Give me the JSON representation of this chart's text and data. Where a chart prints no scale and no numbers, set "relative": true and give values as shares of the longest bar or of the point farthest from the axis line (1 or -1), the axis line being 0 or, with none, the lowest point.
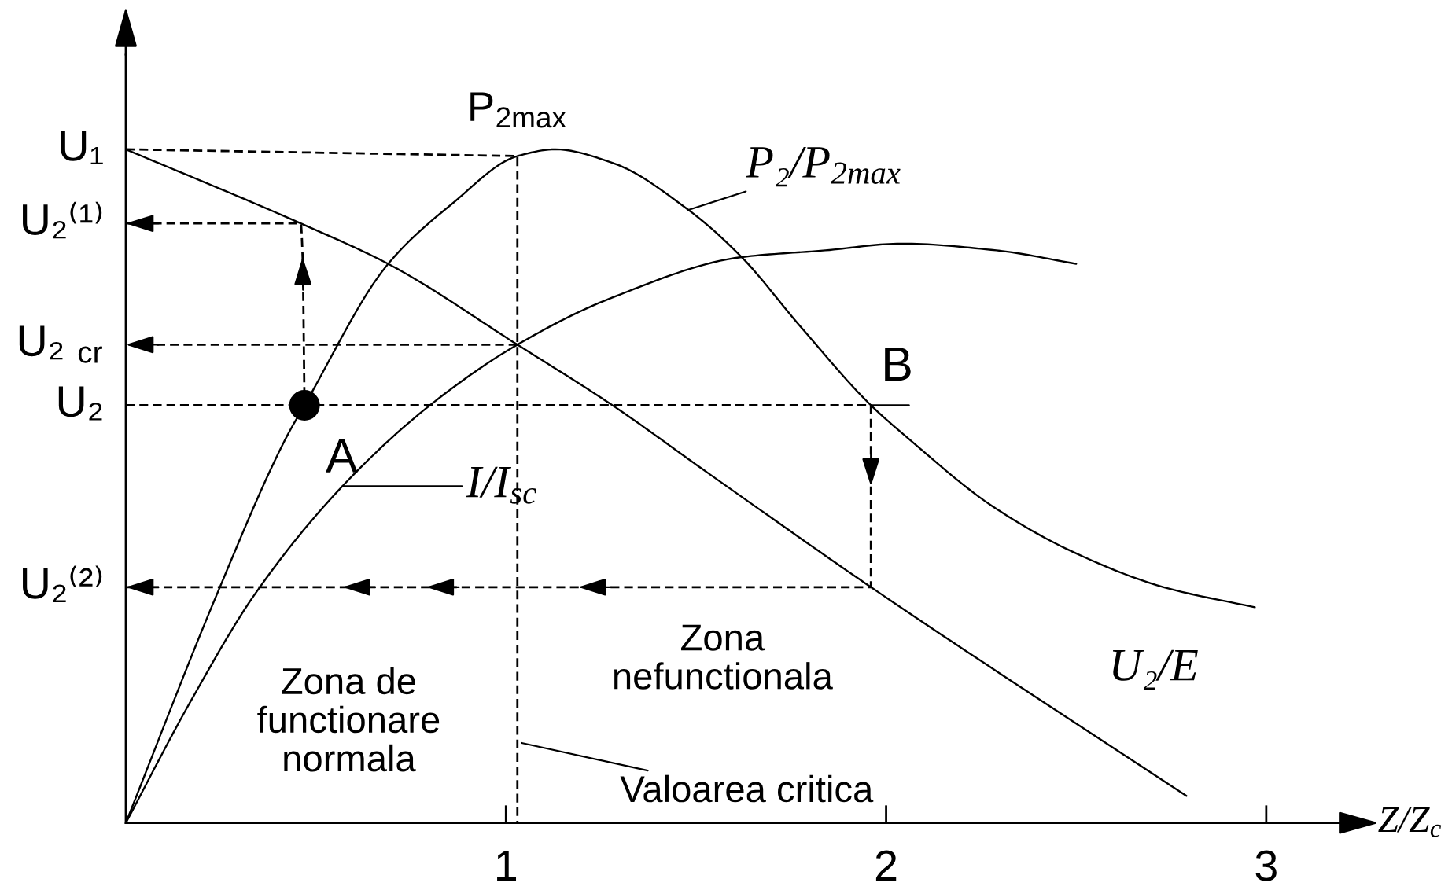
{
  "chart_data": {
    "type": "line",
    "relative": true,
    "xlabel": "Z/Z$_{c}$",
    "xlim": [
      0,
      3.17
    ],
    "xticks": [
      1,
      2,
      3
    ],
    "series": [
      {
        "name": "P₂/P$_{2max}$",
        "color": "#000000",
        "x": [
          0,
          0.24,
          0.42,
          0.47,
          0.69,
          0.86,
          1.03,
          1.13,
          1.28,
          1.48,
          1.62,
          1.77,
          1.96,
          2.06,
          2.28,
          2.5,
          2.73,
          2.97
        ],
        "values": [
          0,
          0.34,
          0.57,
          0.62,
          0.83,
          0.92,
          0.99,
          1.0,
          0.98,
          0.91,
          0.84,
          0.74,
          0.62,
          0.57,
          0.47,
          0.4,
          0.35,
          0.32
        ]
      },
      {
        "name": "I/I$_{sc}$",
        "color": "#000000",
        "x": [
          0,
          0.17,
          0.34,
          0.57,
          0.8,
          1.03,
          1.28,
          1.62,
          1.84,
          2.04,
          2.29,
          2.5
        ],
        "values": [
          0,
          0.18,
          0.34,
          0.5,
          0.62,
          0.71,
          0.78,
          0.84,
          0.85,
          0.86,
          0.85,
          0.83
        ]
      },
      {
        "name": "U₂/E",
        "color": "#000000",
        "x": [
          0,
          0.46,
          0.69,
          1.03,
          1.28,
          1.53,
          1.96,
          2.79
        ],
        "values": [
          1.0,
          0.89,
          0.83,
          0.71,
          0.62,
          0.52,
          0.35,
          0.04
        ]
      },
      {
        "color": "#000000",
        "line_style": "dashed",
        "x": [
          0,
          1.03,
          1.03
        ],
        "values": [
          1.0,
          0.99,
          0
        ]
      },
      {
        "color": "#000000",
        "line_style": "dashed",
        "x": [
          0.47,
          0.465,
          0.46,
          0
        ],
        "values": [
          0.62,
          0.84,
          0.89,
          0.89
        ]
      },
      {
        "color": "#000000",
        "line_style": "dashed",
        "x": [
          1.03,
          0
        ],
        "values": [
          0.71,
          0.71
        ]
      },
      {
        "color": "#000000",
        "line_style": "dashed",
        "x": [
          0,
          1.96,
          1.96,
          1.96,
          1.19,
          0.79,
          0.57,
          0
        ],
        "values": [
          0.62,
          0.62,
          0.5,
          0.35,
          0.35,
          0.35,
          0.35,
          0.35
        ]
      },
      {
        "color": "#000000",
        "line_style": "solid",
        "x": [
          1.96,
          2.06
        ],
        "values": [
          0.62,
          0.62
        ]
      },
      {
        "type": "scatter",
        "color": "#000000",
        "marker": "circle",
        "x": [
          0.47
        ],
        "values": [
          0.62
        ]
      }
    ],
    "annotations": [
      {
        "text": "P$_{2max}$",
        "x": 1.03,
        "y": 0.99
      },
      {
        "text": "A",
        "x": 0.47,
        "y": 0.62
      },
      {
        "text": "B",
        "x": 1.96,
        "y": 0.62
      },
      {
        "text": "Valoarea critica",
        "x": 1.03,
        "y": 0.12
      },
      {
        "text": "U₁",
        "x": 0,
        "y": 1.0
      },
      {
        "text": "U₂⁽¹⁾",
        "x": 0,
        "y": 0.89
      },
      {
        "text": "U₂ $_{cr}$",
        "x": 0,
        "y": 0.71
      },
      {
        "text": "U₂",
        "x": 0,
        "y": 0.62
      },
      {
        "text": "U₂⁽²⁾",
        "x": 0,
        "y": 0.35
      },
      "Zona de\nfunctionare\nnormala",
      "Zona\nnefunctionala"
    ]
  }
}
